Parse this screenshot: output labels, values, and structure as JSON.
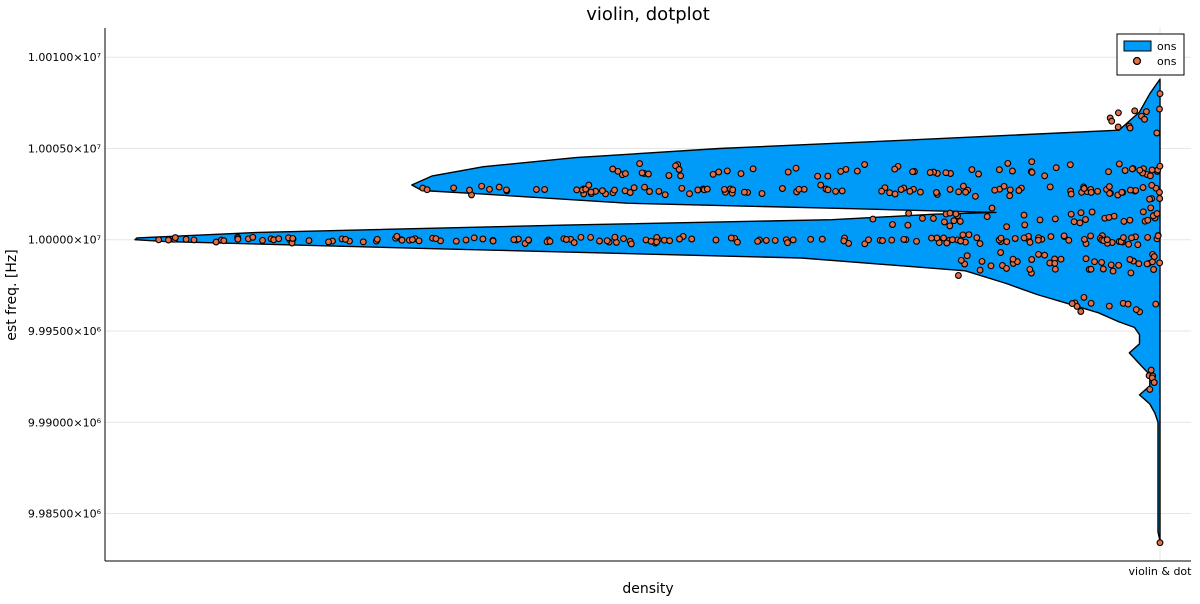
{
  "chart_data": {
    "type": "violin",
    "title": "violin, dotplot",
    "xlabel": "density",
    "ylabel": "est freq. [Hz]",
    "x_tick_labels": [
      "violin & dot"
    ],
    "y_ticks": [
      {
        "value": 9985000,
        "label": "9.98500×10⁶"
      },
      {
        "value": 9990000,
        "label": "9.99000×10⁶"
      },
      {
        "value": 9995000,
        "label": "9.99500×10⁶"
      },
      {
        "value": 10000000,
        "label": "1.00000×10⁷"
      },
      {
        "value": 10005000,
        "label": "1.00050×10⁷"
      },
      {
        "value": 10010000,
        "label": "1.00100×10⁷"
      }
    ],
    "ylim": [
      9982400,
      10011600
    ],
    "grid": true,
    "legend": {
      "placement": "top-right",
      "entries": [
        {
          "label": "ons",
          "kind": "violin",
          "color": "#009af9"
        },
        {
          "label": "ons",
          "kind": "dot",
          "color": "#e26f46"
        }
      ]
    },
    "series": [
      {
        "kind": "violin",
        "color": "#009af9",
        "outline": [
          [
            10008800,
            0.0
          ],
          [
            10008000,
            0.01
          ],
          [
            10007000,
            0.02
          ],
          [
            10006000,
            0.04
          ],
          [
            10005400,
            0.27
          ],
          [
            10005000,
            0.43
          ],
          [
            10004500,
            0.57
          ],
          [
            10004000,
            0.66
          ],
          [
            10003500,
            0.71
          ],
          [
            10003000,
            0.73
          ],
          [
            10002700,
            0.72
          ],
          [
            10002500,
            0.66
          ],
          [
            10002000,
            0.52
          ],
          [
            10001700,
            0.3
          ],
          [
            10001500,
            0.16
          ],
          [
            10001400,
            0.22
          ],
          [
            10001100,
            0.32
          ],
          [
            10000800,
            0.58
          ],
          [
            10000400,
            0.88
          ],
          [
            10000100,
            0.998
          ],
          [
            10000000,
            1.0
          ],
          [
            9999900,
            0.97
          ],
          [
            9999500,
            0.7
          ],
          [
            9999000,
            0.35
          ],
          [
            9998300,
            0.19
          ],
          [
            9997600,
            0.15
          ],
          [
            9997000,
            0.12
          ],
          [
            9996500,
            0.09
          ],
          [
            9996000,
            0.06
          ],
          [
            9995500,
            0.04
          ],
          [
            9995200,
            0.025
          ],
          [
            9994800,
            0.02
          ],
          [
            9994300,
            0.02
          ],
          [
            9993800,
            0.03
          ],
          [
            9993200,
            0.02
          ],
          [
            9992600,
            0.01
          ],
          [
            9992000,
            0.01
          ],
          [
            9991500,
            0.02
          ],
          [
            9991000,
            0.01
          ],
          [
            9990500,
            0.005
          ],
          [
            9990000,
            0.002
          ],
          [
            9984000,
            0.002
          ],
          [
            9983500,
            0.0
          ]
        ]
      },
      {
        "kind": "dot",
        "color": "#e26f46",
        "clusters": [
          {
            "center": 10000000,
            "spread": 150,
            "reach": 1.0,
            "count": 160,
            "extra_spread": 300
          },
          {
            "center": 10002700,
            "spread": 250,
            "reach": 0.72,
            "count": 110,
            "extra_spread": 400
          },
          {
            "center": 10003800,
            "spread": 500,
            "reach": 0.55,
            "count": 60,
            "extra_spread": 0
          },
          {
            "center": 10001200,
            "spread": 600,
            "reach": 0.3,
            "count": 40,
            "extra_spread": 0
          },
          {
            "center": 9998600,
            "spread": 800,
            "reach": 0.2,
            "count": 45,
            "extra_spread": 0
          },
          {
            "center": 9996500,
            "spread": 700,
            "reach": 0.09,
            "count": 12,
            "extra_spread": 0
          },
          {
            "center": 10006500,
            "spread": 900,
            "reach": 0.05,
            "count": 12,
            "extra_spread": 0
          },
          {
            "center": 9992500,
            "spread": 1600,
            "reach": 0.012,
            "count": 6,
            "extra_spread": 0
          }
        ],
        "outliers": [
          {
            "y": 10008000,
            "reach": 0.0
          },
          {
            "y": 9983400,
            "reach": 0.0
          },
          {
            "y": 9991800,
            "reach": 0.01
          }
        ]
      }
    ]
  }
}
